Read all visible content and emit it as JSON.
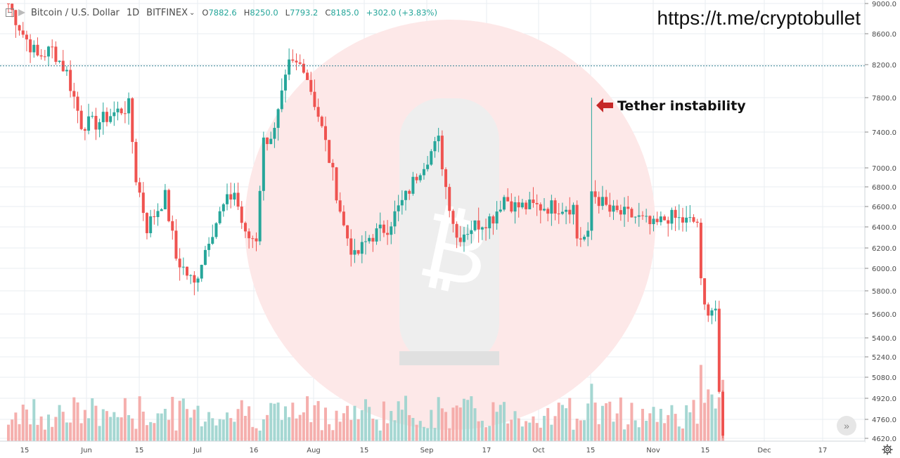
{
  "legend": {
    "symbol": "Bitcoin / U.S. Dollar",
    "interval": "1D",
    "exchange": "BITFINEX",
    "open_label": "O",
    "open": "7882.6",
    "high_label": "H",
    "high": "8250.0",
    "low_label": "L",
    "low": "7793.2",
    "close_label": "C",
    "close": "8185.0",
    "change": "+302.0 (+3.83%)"
  },
  "watermark_url": "https://t.me/cryptobullet",
  "annotation": "Tether instability",
  "price_line": 8185.0,
  "colors": {
    "up": "#26a69a",
    "down": "#ef5350",
    "up_vol": "#9bd3cd",
    "down_vol": "#f4a6a4",
    "grid": "#e9edf2",
    "axis_text": "#4a4a4a",
    "arrow": "#d32f2f",
    "price_line": "#2f7f8f"
  },
  "chart_data": {
    "type": "candlestick",
    "title": "Bitcoin / U.S. Dollar",
    "price_axis_ticks": [
      9000,
      8600,
      8200,
      7800,
      7400,
      7000,
      6800,
      6600,
      6400,
      6200,
      6000,
      5800,
      5600,
      5400,
      5240,
      5080,
      4920,
      4760,
      4620
    ],
    "time_axis_labels": [
      "15",
      "Jun",
      "15",
      "Jul",
      "16",
      "Aug",
      "15",
      "Sep",
      "17",
      "Oct",
      "15",
      "Nov",
      "15",
      "Dec",
      "17"
    ],
    "keypoints_close": [
      {
        "date": "May 8",
        "close": 9000
      },
      {
        "date": "May 12",
        "close": 8600
      },
      {
        "date": "May 16",
        "close": 8300
      },
      {
        "date": "May 20",
        "close": 8400
      },
      {
        "date": "May 24",
        "close": 8100
      },
      {
        "date": "May 28",
        "close": 7500
      },
      {
        "date": "Jun 1",
        "close": 7500
      },
      {
        "date": "Jun 5",
        "close": 7600
      },
      {
        "date": "Jun 10",
        "close": 7700
      },
      {
        "date": "Jun 12",
        "close": 6900
      },
      {
        "date": "Jun 15",
        "close": 6400
      },
      {
        "date": "Jun 20",
        "close": 6700
      },
      {
        "date": "Jun 23",
        "close": 6100
      },
      {
        "date": "Jun 28",
        "close": 5850
      },
      {
        "date": "Jul 2",
        "close": 6300
      },
      {
        "date": "Jul 6",
        "close": 6600
      },
      {
        "date": "Jul 9",
        "close": 6750
      },
      {
        "date": "Jul 12",
        "close": 6300
      },
      {
        "date": "Jul 15",
        "close": 6300
      },
      {
        "date": "Jul 17",
        "close": 7300
      },
      {
        "date": "Jul 20",
        "close": 7400
      },
      {
        "date": "Jul 24",
        "close": 8200
      },
      {
        "date": "Jul 28",
        "close": 8200
      },
      {
        "date": "Aug 1",
        "close": 7600
      },
      {
        "date": "Aug 4",
        "close": 7100
      },
      {
        "date": "Aug 8",
        "close": 6400
      },
      {
        "date": "Aug 11",
        "close": 6100
      },
      {
        "date": "Aug 15",
        "close": 6300
      },
      {
        "date": "Aug 20",
        "close": 6400
      },
      {
        "date": "Aug 25",
        "close": 6700
      },
      {
        "date": "Aug 29",
        "close": 7000
      },
      {
        "date": "Sep 3",
        "close": 7300
      },
      {
        "date": "Sep 5",
        "close": 6800
      },
      {
        "date": "Sep 8",
        "close": 6300
      },
      {
        "date": "Sep 12",
        "close": 6400
      },
      {
        "date": "Sep 18",
        "close": 6500
      },
      {
        "date": "Sep 21",
        "close": 6700
      },
      {
        "date": "Sep 24",
        "close": 6600
      },
      {
        "date": "Oct 1",
        "close": 6600
      },
      {
        "date": "Oct 10",
        "close": 6600
      },
      {
        "date": "Oct 11",
        "close": 6300
      },
      {
        "date": "Oct 14",
        "close": 6300
      },
      {
        "date": "Oct 15",
        "close": 6750
      },
      {
        "date": "Oct 20",
        "close": 6550
      },
      {
        "date": "Oct 27",
        "close": 6500
      },
      {
        "date": "Nov 1",
        "close": 6400
      },
      {
        "date": "Nov 5",
        "close": 6500
      },
      {
        "date": "Nov 10",
        "close": 6450
      },
      {
        "date": "Nov 13",
        "close": 6450
      },
      {
        "date": "Nov 14",
        "close": 5850
      },
      {
        "date": "Nov 15",
        "close": 5650
      },
      {
        "date": "Nov 18",
        "close": 5650
      },
      {
        "date": "Nov 19",
        "close": 4900
      },
      {
        "date": "Nov 20",
        "close": 4620
      }
    ],
    "event": {
      "date": "Oct 15",
      "high": 7800,
      "label": "Tether instability"
    },
    "ylim": [
      4620,
      9000
    ],
    "grid": true,
    "scale": "log"
  }
}
